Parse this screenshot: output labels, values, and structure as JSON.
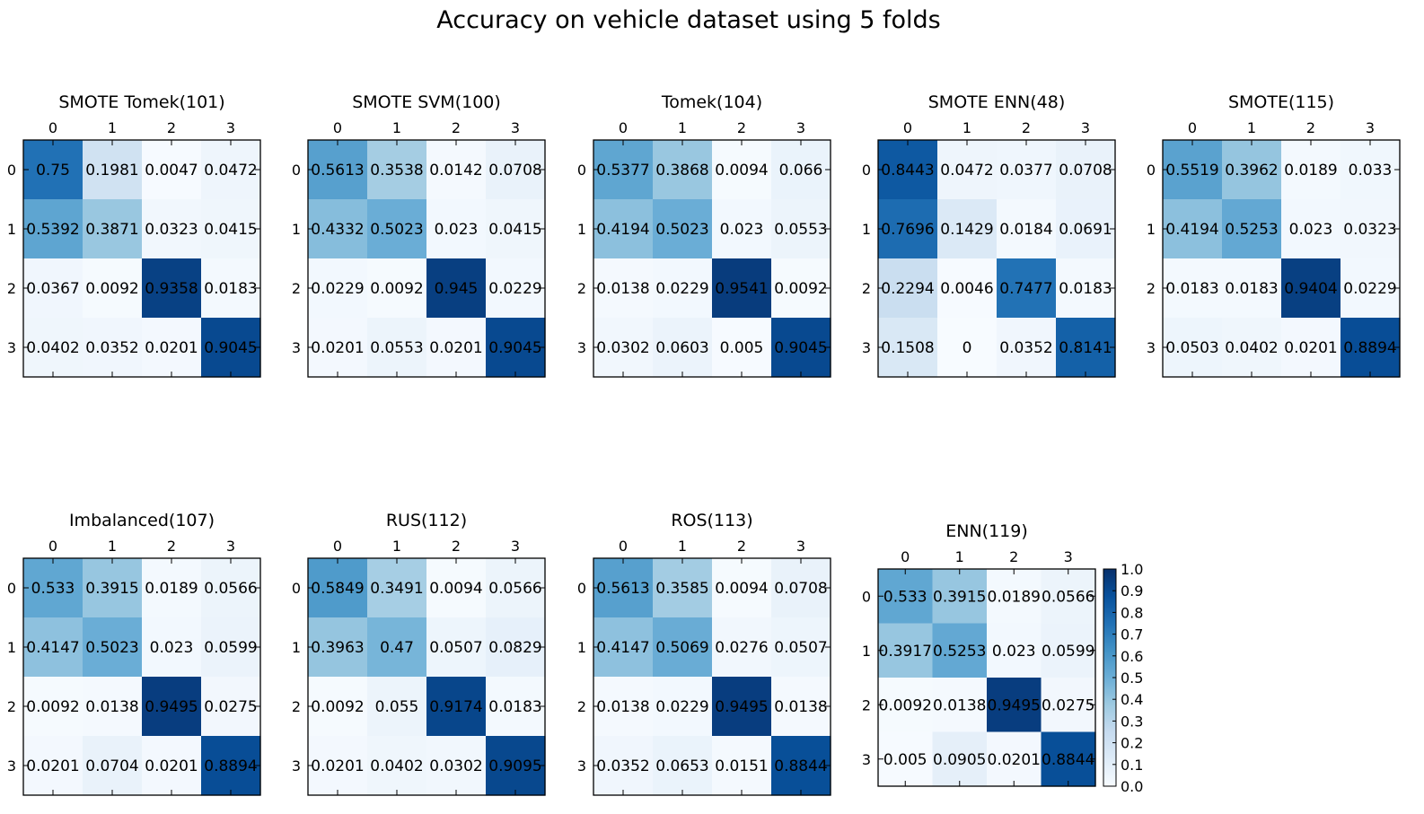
{
  "figure_title": "Accuracy on vehicle dataset using 5 folds",
  "colormap": {
    "name": "Blues",
    "low": "#f7fbff",
    "high": "#08306b"
  },
  "chart_data": [
    {
      "type": "heatmap",
      "title": "SMOTE Tomek(101)",
      "x_ticks": [
        "0",
        "1",
        "2",
        "3"
      ],
      "y_ticks": [
        "0",
        "1",
        "2",
        "3"
      ],
      "vmin": 0,
      "vmax": 1,
      "values": [
        [
          0.75,
          0.1981,
          0.0047,
          0.0472
        ],
        [
          0.5392,
          0.3871,
          0.0323,
          0.0415
        ],
        [
          0.0367,
          0.0092,
          0.9358,
          0.0183
        ],
        [
          0.0402,
          0.0352,
          0.0201,
          0.9045
        ]
      ]
    },
    {
      "type": "heatmap",
      "title": "SMOTE SVM(100)",
      "x_ticks": [
        "0",
        "1",
        "2",
        "3"
      ],
      "y_ticks": [
        "0",
        "1",
        "2",
        "3"
      ],
      "vmin": 0,
      "vmax": 1,
      "values": [
        [
          0.5613,
          0.3538,
          0.0142,
          0.0708
        ],
        [
          0.4332,
          0.5023,
          0.023,
          0.0415
        ],
        [
          0.0229,
          0.0092,
          0.945,
          0.0229
        ],
        [
          0.0201,
          0.0553,
          0.0201,
          0.9045
        ]
      ]
    },
    {
      "type": "heatmap",
      "title": "Tomek(104)",
      "x_ticks": [
        "0",
        "1",
        "2",
        "3"
      ],
      "y_ticks": [
        "0",
        "1",
        "2",
        "3"
      ],
      "vmin": 0,
      "vmax": 1,
      "values": [
        [
          0.5377,
          0.3868,
          0.0094,
          0.066
        ],
        [
          0.4194,
          0.5023,
          0.023,
          0.0553
        ],
        [
          0.0138,
          0.0229,
          0.9541,
          0.0092
        ],
        [
          0.0302,
          0.0603,
          0.005,
          0.9045
        ]
      ]
    },
    {
      "type": "heatmap",
      "title": "SMOTE ENN(48)",
      "x_ticks": [
        "0",
        "1",
        "2",
        "3"
      ],
      "y_ticks": [
        "0",
        "1",
        "2",
        "3"
      ],
      "vmin": 0,
      "vmax": 1,
      "values": [
        [
          0.8443,
          0.0472,
          0.0377,
          0.0708
        ],
        [
          0.7696,
          0.1429,
          0.0184,
          0.0691
        ],
        [
          0.2294,
          0.0046,
          0.7477,
          0.0183
        ],
        [
          0.1508,
          0.0,
          0.0352,
          0.8141
        ]
      ]
    },
    {
      "type": "heatmap",
      "title": "SMOTE(115)",
      "x_ticks": [
        "0",
        "1",
        "2",
        "3"
      ],
      "y_ticks": [
        "0",
        "1",
        "2",
        "3"
      ],
      "vmin": 0,
      "vmax": 1,
      "values": [
        [
          0.5519,
          0.3962,
          0.0189,
          0.033
        ],
        [
          0.4194,
          0.5253,
          0.023,
          0.0323
        ],
        [
          0.0183,
          0.0183,
          0.9404,
          0.0229
        ],
        [
          0.0503,
          0.0402,
          0.0201,
          0.8894
        ]
      ]
    },
    {
      "type": "heatmap",
      "title": "Imbalanced(107)",
      "x_ticks": [
        "0",
        "1",
        "2",
        "3"
      ],
      "y_ticks": [
        "0",
        "1",
        "2",
        "3"
      ],
      "vmin": 0,
      "vmax": 1,
      "values": [
        [
          0.533,
          0.3915,
          0.0189,
          0.0566
        ],
        [
          0.4147,
          0.5023,
          0.023,
          0.0599
        ],
        [
          0.0092,
          0.0138,
          0.9495,
          0.0275
        ],
        [
          0.0201,
          0.0704,
          0.0201,
          0.8894
        ]
      ]
    },
    {
      "type": "heatmap",
      "title": "RUS(112)",
      "x_ticks": [
        "0",
        "1",
        "2",
        "3"
      ],
      "y_ticks": [
        "0",
        "1",
        "2",
        "3"
      ],
      "vmin": 0,
      "vmax": 1,
      "values": [
        [
          0.5849,
          0.3491,
          0.0094,
          0.0566
        ],
        [
          0.3963,
          0.47,
          0.0507,
          0.0829
        ],
        [
          0.0092,
          0.055,
          0.9174,
          0.0183
        ],
        [
          0.0201,
          0.0402,
          0.0302,
          0.9095
        ]
      ]
    },
    {
      "type": "heatmap",
      "title": "ROS(113)",
      "x_ticks": [
        "0",
        "1",
        "2",
        "3"
      ],
      "y_ticks": [
        "0",
        "1",
        "2",
        "3"
      ],
      "vmin": 0,
      "vmax": 1,
      "values": [
        [
          0.5613,
          0.3585,
          0.0094,
          0.0708
        ],
        [
          0.4147,
          0.5069,
          0.0276,
          0.0507
        ],
        [
          0.0138,
          0.0229,
          0.9495,
          0.0138
        ],
        [
          0.0352,
          0.0653,
          0.0151,
          0.8844
        ]
      ]
    },
    {
      "type": "heatmap",
      "title": "ENN(119)",
      "x_ticks": [
        "0",
        "1",
        "2",
        "3"
      ],
      "y_ticks": [
        "0",
        "1",
        "2",
        "3"
      ],
      "vmin": 0,
      "vmax": 1,
      "values": [
        [
          0.533,
          0.3915,
          0.0189,
          0.0566
        ],
        [
          0.3917,
          0.5253,
          0.023,
          0.0599
        ],
        [
          0.0092,
          0.0138,
          0.9495,
          0.0275
        ],
        [
          0.005,
          0.0905,
          0.0201,
          0.8844
        ]
      ]
    }
  ],
  "colorbar": {
    "ticks": [
      "0.0",
      "0.1",
      "0.2",
      "0.3",
      "0.4",
      "0.5",
      "0.6",
      "0.7",
      "0.8",
      "0.9",
      "1.0"
    ],
    "vmin": 0,
    "vmax": 1
  }
}
